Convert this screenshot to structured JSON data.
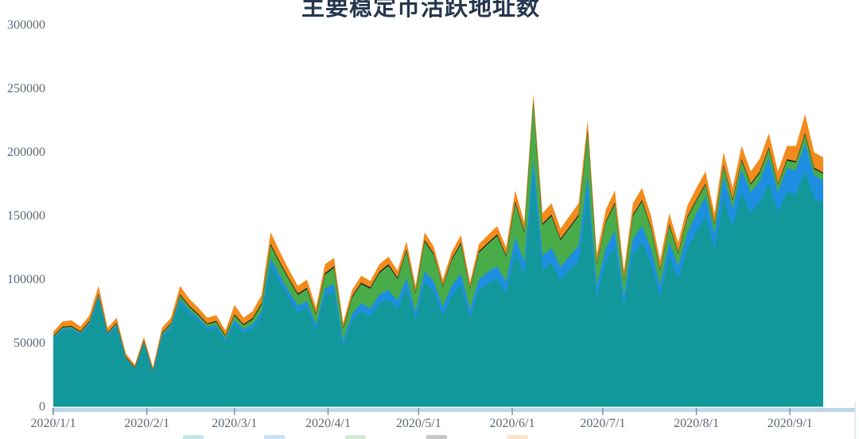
{
  "title": "主要稳定币活跃地址数",
  "style": {
    "background": "#FFFFFF",
    "axis_line_color": "#BCD6EA",
    "tick_color": "#7E93A8",
    "label_color": "#5B6878",
    "title_color": "#26374E",
    "right_border_color": "#DAE5EF"
  },
  "chart_data": {
    "type": "area",
    "stacked": true,
    "title": "主要稳定币活跃地址数",
    "xlabel": "",
    "ylabel": "",
    "ylim": [
      0,
      300000
    ],
    "grid": false,
    "legend_position": "bottom-cropped",
    "y_ticks": [
      0,
      50000,
      100000,
      150000,
      200000,
      250000,
      300000
    ],
    "x_ticks": [
      {
        "label": "2020/1/1",
        "day": 0
      },
      {
        "label": "2020/2/1",
        "day": 31
      },
      {
        "label": "2020/3/1",
        "day": 60
      },
      {
        "label": "2020/4/1",
        "day": 91
      },
      {
        "label": "2020/5/1",
        "day": 121
      },
      {
        "label": "2020/6/1",
        "day": 152
      },
      {
        "label": "2020/7/1",
        "day": 182
      },
      {
        "label": "2020/8/1",
        "day": 213
      },
      {
        "label": "2020/9/1",
        "day": 244
      }
    ],
    "x": [
      "2020/1/1",
      "2020/1/4",
      "2020/1/7",
      "2020/1/10",
      "2020/1/13",
      "2020/1/16",
      "2020/1/19",
      "2020/1/22",
      "2020/1/25",
      "2020/1/28",
      "2020/1/31",
      "2020/2/3",
      "2020/2/6",
      "2020/2/9",
      "2020/2/12",
      "2020/2/15",
      "2020/2/18",
      "2020/2/21",
      "2020/2/24",
      "2020/2/27",
      "2020/3/1",
      "2020/3/4",
      "2020/3/7",
      "2020/3/10",
      "2020/3/13",
      "2020/3/16",
      "2020/3/19",
      "2020/3/22",
      "2020/3/25",
      "2020/3/28",
      "2020/3/31",
      "2020/4/3",
      "2020/4/6",
      "2020/4/9",
      "2020/4/12",
      "2020/4/15",
      "2020/4/18",
      "2020/4/21",
      "2020/4/24",
      "2020/4/27",
      "2020/4/30",
      "2020/5/3",
      "2020/5/6",
      "2020/5/9",
      "2020/5/12",
      "2020/5/15",
      "2020/5/18",
      "2020/5/21",
      "2020/5/24",
      "2020/5/27",
      "2020/5/30",
      "2020/6/2",
      "2020/6/5",
      "2020/6/8",
      "2020/6/11",
      "2020/6/14",
      "2020/6/17",
      "2020/6/20",
      "2020/6/23",
      "2020/6/26",
      "2020/6/29",
      "2020/7/2",
      "2020/7/5",
      "2020/7/8",
      "2020/7/11",
      "2020/7/14",
      "2020/7/17",
      "2020/7/20",
      "2020/7/23",
      "2020/7/26",
      "2020/7/29",
      "2020/8/1",
      "2020/8/4",
      "2020/8/7",
      "2020/8/10",
      "2020/8/13",
      "2020/8/16",
      "2020/8/19",
      "2020/8/22",
      "2020/8/25",
      "2020/8/28",
      "2020/8/31",
      "2020/9/3",
      "2020/9/6",
      "2020/9/9",
      "2020/9/12"
    ],
    "series": [
      {
        "id": "teal",
        "color": "#12989B",
        "values": [
          52400,
          59700,
          60100,
          56000,
          63700,
          84400,
          55300,
          62500,
          36900,
          28700,
          48800,
          26400,
          54300,
          61300,
          81800,
          73400,
          67300,
          60200,
          61800,
          50900,
          65100,
          58200,
          61400,
          71000,
          110800,
          97900,
          86000,
          74700,
          78000,
          59900,
          87400,
          90400,
          48000,
          67500,
          75300,
          71000,
          81200,
          84400,
          76700,
          93400,
          68100,
          98400,
          90500,
          71800,
          87500,
          95900,
          70100,
          91700,
          97000,
          100400,
          89700,
          121300,
          103900,
          178500,
          107900,
          112800,
          100000,
          107400,
          114900,
          166600,
          86100,
          114000,
          125900,
          78700,
          120000,
          129400,
          112500,
          86200,
          118000,
          100600,
          124500,
          138000,
          150500,
          124100,
          164000,
          141600,
          168500,
          152500,
          160500,
          175900,
          152600,
          169000,
          167000,
          185400,
          164000,
          160100
        ]
      },
      {
        "id": "blue",
        "color": "#1E8FE0",
        "values": [
          1500,
          1500,
          1600,
          1500,
          1800,
          2200,
          1500,
          1700,
          1200,
          1000,
          1400,
          1100,
          1800,
          2000,
          3000,
          2700,
          2500,
          2300,
          2400,
          2200,
          3000,
          2800,
          3200,
          4000,
          6000,
          5500,
          5000,
          4800,
          5000,
          4200,
          5500,
          6000,
          4200,
          5500,
          6200,
          6300,
          7000,
          7500,
          6800,
          8000,
          6200,
          8500,
          8000,
          6500,
          8000,
          9000,
          6500,
          8500,
          9000,
          10000,
          8500,
          12000,
          10000,
          16000,
          11000,
          12000,
          10000,
          11000,
          12000,
          15000,
          9000,
          11000,
          12500,
          8000,
          12000,
          13000,
          11500,
          9000,
          11500,
          10000,
          12000,
          14000,
          15000,
          12000,
          17000,
          14000,
          18000,
          16000,
          17000,
          20000,
          16000,
          18500,
          19000,
          22000,
          18000,
          18000
        ]
      },
      {
        "id": "green",
        "color": "#49AC49",
        "values": [
          1000,
          1200,
          1200,
          1100,
          1300,
          1600,
          1100,
          1200,
          900,
          800,
          1000,
          800,
          1500,
          1800,
          2800,
          2600,
          2400,
          2300,
          2500,
          2200,
          3500,
          3200,
          4000,
          5500,
          10000,
          9500,
          9000,
          8500,
          9500,
          8000,
          11000,
          13000,
          9000,
          13000,
          15000,
          15500,
          17000,
          19000,
          17000,
          21000,
          15000,
          23000,
          21000,
          16000,
          20000,
          23000,
          16000,
          21000,
          22000,
          24000,
          20000,
          27000,
          23000,
          44000,
          24000,
          25000,
          21000,
          22000,
          23000,
          34000,
          17000,
          20000,
          21000,
          13000,
          18000,
          19000,
          16000,
          12000,
          13000,
          10000,
          12000,
          10000,
          9000,
          7000,
          8000,
          6500,
          7000,
          6000,
          6500,
          7000,
          5500,
          6000,
          6000,
          6500,
          5000,
          5000
        ]
      },
      {
        "id": "black",
        "color": "#1A1A1A",
        "values": [
          600,
          600,
          600,
          600,
          700,
          800,
          600,
          600,
          500,
          500,
          600,
          500,
          600,
          700,
          900,
          800,
          800,
          700,
          800,
          700,
          900,
          800,
          900,
          1000,
          1200,
          1100,
          1000,
          1000,
          1000,
          900,
          1100,
          1100,
          800,
          1000,
          1000,
          1000,
          1000,
          1100,
          1000,
          1100,
          900,
          1100,
          1000,
          900,
          1000,
          1100,
          900,
          1000,
          1000,
          1100,
          1000,
          1200,
          1100,
          1500,
          1100,
          1200,
          1000,
          1100,
          1100,
          1400,
          900,
          1000,
          1100,
          800,
          1000,
          1100,
          1000,
          800,
          1000,
          900,
          1000,
          1000,
          1000,
          900,
          1000,
          900,
          1000,
          1000,
          1000,
          1100,
          900,
          1000,
          1000,
          1100,
          1000,
          900
        ]
      },
      {
        "id": "orange",
        "color": "#F28B1D",
        "values": [
          3500,
          4000,
          4500,
          3800,
          4500,
          6000,
          3500,
          4000,
          2500,
          2000,
          3200,
          2200,
          3800,
          4200,
          6500,
          5500,
          5000,
          4500,
          4500,
          4000,
          7500,
          5000,
          5500,
          6500,
          9000,
          8000,
          7000,
          6000,
          6500,
          5000,
          7000,
          6500,
          4000,
          5000,
          5500,
          5200,
          5800,
          6000,
          5500,
          6500,
          4800,
          6000,
          5500,
          4800,
          5500,
          6000,
          4500,
          5800,
          6000,
          6500,
          5800,
          8500,
          7000,
          6000,
          8000,
          9000,
          8000,
          8500,
          9000,
          8000,
          7000,
          9000,
          9500,
          6500,
          9000,
          9500,
          9000,
          7000,
          8500,
          7500,
          8500,
          9000,
          9500,
          8000,
          10000,
          9000,
          10500,
          9500,
          10000,
          11000,
          10000,
          10500,
          12000,
          15000,
          12000,
          12000
        ]
      }
    ]
  }
}
